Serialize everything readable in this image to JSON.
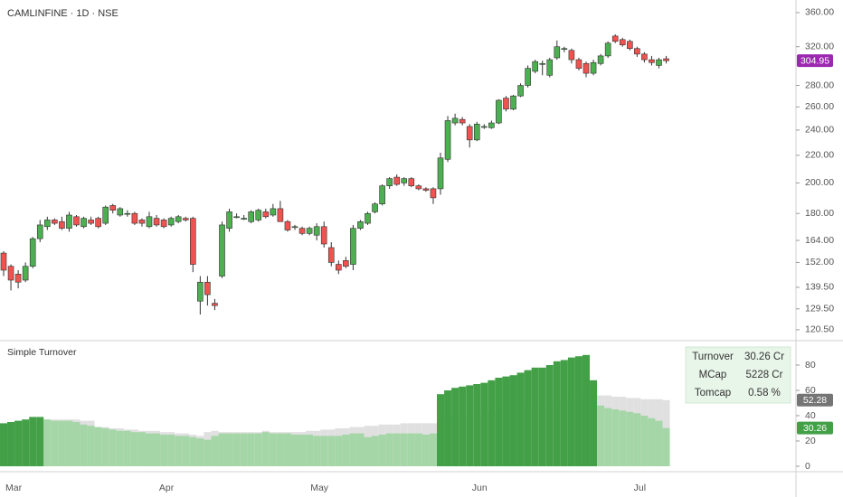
{
  "chart_data": [
    {
      "type": "candlestick",
      "title": "CAMLINFINE · 1D · NSE",
      "log_scale": true,
      "up_color": "#4caf50",
      "down_color": "#ef5350",
      "last_color": "#9c27b0",
      "categories": [
        null,
        "Mar",
        null,
        null,
        null,
        null,
        null,
        null,
        null,
        null,
        null,
        null,
        null,
        null,
        null,
        null,
        null,
        null,
        null,
        null,
        null,
        null,
        "Apr",
        null,
        null,
        null,
        null,
        null,
        null,
        null,
        null,
        null,
        null,
        null,
        null,
        null,
        null,
        null,
        null,
        null,
        null,
        null,
        null,
        "May",
        null,
        null,
        null,
        null,
        null,
        null,
        null,
        null,
        null,
        null,
        null,
        null,
        null,
        null,
        null,
        null,
        null,
        null,
        null,
        null,
        null,
        "Jun",
        null,
        null,
        null,
        null,
        null,
        null,
        null,
        null,
        null,
        null,
        null,
        null,
        null,
        null,
        null,
        null,
        null,
        null,
        null,
        null,
        null,
        "Jul",
        null,
        null,
        null,
        null
      ],
      "open": [
        157,
        150,
        146,
        143,
        150,
        165,
        172,
        176,
        175,
        171,
        178,
        172,
        176,
        177,
        174,
        185,
        179,
        180,
        180,
        176,
        172,
        177,
        176,
        173,
        175,
        177,
        177,
        133,
        142,
        132,
        145,
        171,
        178,
        177,
        175,
        176,
        181,
        179,
        183,
        175,
        172,
        171,
        168,
        167,
        172,
        160,
        151,
        153,
        151,
        171,
        174,
        181,
        186,
        198,
        204,
        200,
        203,
        198,
        196,
        196,
        196,
        217,
        246,
        249,
        243,
        232,
        243,
        242,
        246,
        268,
        258,
        270,
        280,
        294,
        302,
        290,
        308,
        318,
        316,
        306,
        302,
        292,
        302,
        310,
        332,
        328,
        326,
        318,
        312,
        306,
        300,
        307
      ],
      "high": [
        158,
        151,
        148,
        152,
        166,
        176,
        178,
        177,
        178,
        181,
        179,
        178,
        178,
        178,
        185,
        186,
        184,
        182,
        181,
        177,
        181,
        179,
        177,
        178,
        179,
        178,
        178,
        145,
        145,
        134,
        175,
        183,
        180,
        179,
        182,
        183,
        183,
        186,
        188,
        176,
        173,
        172,
        172,
        174,
        175,
        163,
        153,
        155,
        173,
        176,
        181,
        187,
        199,
        204,
        206,
        204,
        204,
        199,
        197,
        197,
        222,
        252,
        254,
        251,
        245,
        247,
        245,
        248,
        267,
        270,
        271,
        282,
        300,
        306,
        305,
        308,
        327,
        320,
        318,
        308,
        304,
        306,
        312,
        326,
        334,
        330,
        328,
        320,
        314,
        310,
        308,
        310
      ],
      "low": [
        145,
        138,
        139,
        142,
        149,
        163,
        170,
        173,
        170,
        169,
        172,
        171,
        173,
        171,
        173,
        180,
        178,
        178,
        173,
        172,
        171,
        172,
        171,
        172,
        174,
        175,
        147,
        127,
        131,
        129,
        144,
        169,
        177,
        176,
        174,
        175,
        177,
        178,
        175,
        169,
        170,
        167,
        167,
        164,
        160,
        150,
        146,
        149,
        148,
        170,
        173,
        180,
        185,
        196,
        198,
        198,
        197,
        195,
        194,
        186,
        192,
        215,
        244,
        244,
        226,
        231,
        241,
        241,
        245,
        256,
        257,
        269,
        278,
        292,
        290,
        288,
        306,
        314,
        302,
        295,
        288,
        290,
        300,
        308,
        324,
        320,
        316,
        309,
        303,
        300,
        297,
        302
      ],
      "close": [
        148,
        143,
        142,
        150,
        165,
        173,
        176,
        174,
        171,
        179,
        173,
        177,
        174,
        172,
        184,
        182,
        183,
        180,
        174,
        174,
        178,
        173,
        172,
        177,
        178,
        176,
        151,
        142,
        136,
        131,
        173,
        181,
        178,
        177,
        181,
        182,
        178,
        183,
        175,
        170,
        172,
        168,
        171,
        172,
        162,
        152,
        148,
        150,
        171,
        175,
        180,
        186,
        198,
        203,
        199,
        203,
        198,
        196,
        195,
        190,
        218,
        248,
        250,
        246,
        232,
        245,
        243,
        246,
        266,
        258,
        270,
        280,
        297,
        304,
        302,
        306,
        320,
        318,
        306,
        297,
        292,
        303,
        310,
        324,
        326,
        322,
        318,
        312,
        306,
        303,
        306,
        304.95
      ],
      "ylim": [
        116.4,
        376
      ],
      "yticks": [
        {
          "value": 120.5,
          "label": "120.50"
        },
        {
          "value": 129.5,
          "label": "129.50"
        },
        {
          "value": 139.5,
          "label": "139.50"
        },
        {
          "value": 152,
          "label": "152.00"
        },
        {
          "value": 164,
          "label": "164.00"
        },
        {
          "value": 180,
          "label": "180.00"
        },
        {
          "value": 200,
          "label": "200.00"
        },
        {
          "value": 220,
          "label": "220.00"
        },
        {
          "value": 240,
          "label": "240.00"
        },
        {
          "value": 260,
          "label": "260.00"
        },
        {
          "value": 280,
          "label": "280.00"
        },
        {
          "value": 320,
          "label": "320.00"
        },
        {
          "value": 360,
          "label": "360.00"
        }
      ]
    },
    {
      "type": "bar",
      "title": "Simple Turnover",
      "series": [
        {
          "color": "#e0e0e0",
          "values": [
            33,
            33,
            34,
            34,
            35,
            35,
            37,
            37,
            37,
            37,
            37,
            36,
            36,
            31,
            31,
            30,
            30,
            29,
            29,
            28,
            28,
            28,
            27,
            27,
            26,
            26,
            25,
            24,
            27,
            28,
            27,
            27,
            27,
            27,
            27,
            27,
            28,
            27,
            27,
            27,
            27,
            27,
            28,
            28,
            29,
            29,
            30,
            30,
            31,
            31,
            32,
            32,
            33,
            33,
            33,
            34,
            34,
            34,
            34,
            34,
            36,
            37,
            38,
            39,
            40,
            41,
            42,
            43,
            44,
            45,
            46,
            47,
            48,
            49,
            50,
            51,
            52,
            53,
            54,
            55,
            56,
            57,
            56,
            56,
            55,
            55,
            54,
            54,
            53,
            53,
            53,
            52.28
          ]
        },
        {
          "name": "Turnover",
          "color": "#43a047",
          "color_below": "#a5d6a7",
          "values": [
            34,
            35,
            36,
            37,
            39,
            39,
            37,
            36,
            36,
            36,
            35,
            33,
            32,
            31,
            30,
            29,
            28,
            28,
            27,
            27,
            26,
            26,
            25,
            25,
            24,
            24,
            23,
            22,
            21,
            24,
            26,
            26,
            26,
            26,
            26,
            26,
            27,
            26,
            26,
            26,
            25,
            25,
            25,
            24,
            24,
            24,
            24,
            25,
            26,
            26,
            23,
            24,
            25,
            26,
            26,
            26,
            26,
            26,
            25,
            26,
            57,
            60,
            62,
            63,
            64,
            65,
            66,
            68,
            70,
            71,
            72,
            74,
            76,
            78,
            78,
            80,
            83,
            84,
            86,
            87,
            88,
            68,
            48,
            46,
            45,
            44,
            43,
            42,
            40,
            38,
            36,
            30.26
          ]
        }
      ],
      "ylim": [
        -4.3,
        99.3
      ],
      "yticks": [
        0,
        20,
        40,
        60,
        80
      ],
      "table": {
        "rows": [
          [
            "Turnover",
            "30.26 Cr"
          ],
          [
            "MCap",
            "5228 Cr"
          ],
          [
            "Tomcap",
            "0.58 %"
          ]
        ]
      }
    }
  ]
}
